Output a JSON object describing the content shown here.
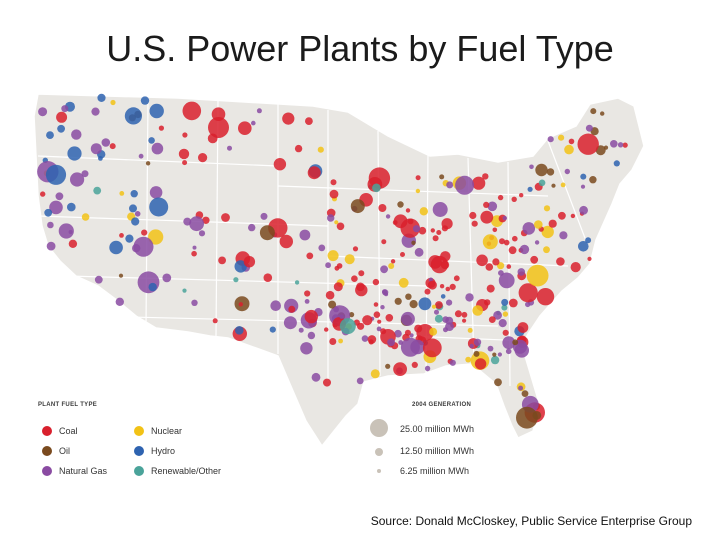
{
  "title": "U.S. Power Plants by Fuel Type",
  "source": "Source: Donald McCloskey, Public Service Enterprise Group",
  "legend": {
    "fuel_heading": "PLANT FUEL TYPE",
    "generation_heading": "2004 GENERATION",
    "fuel_types": [
      {
        "id": "coal",
        "label": "Coal",
        "color": "#d9202d"
      },
      {
        "id": "nuclear",
        "label": "Nuclear",
        "color": "#f2c216"
      },
      {
        "id": "oil",
        "label": "Oil",
        "color": "#7a4a1e"
      },
      {
        "id": "hydro",
        "label": "Hydro",
        "color": "#2e63b0"
      },
      {
        "id": "gas",
        "label": "Natural Gas",
        "color": "#8a4ba2"
      },
      {
        "id": "renewable",
        "label": "Renewable/Other",
        "color": "#4aa39a"
      }
    ],
    "generation_sizes": [
      {
        "label": "25.00 million MWh",
        "value": 25.0
      },
      {
        "label": "12.50 million MWh",
        "value": 12.5
      },
      {
        "label": "6.25 million MWh",
        "value": 6.25
      }
    ]
  },
  "map": {
    "land_color": "#e9e7e3",
    "border_color": "#ffffff"
  }
}
